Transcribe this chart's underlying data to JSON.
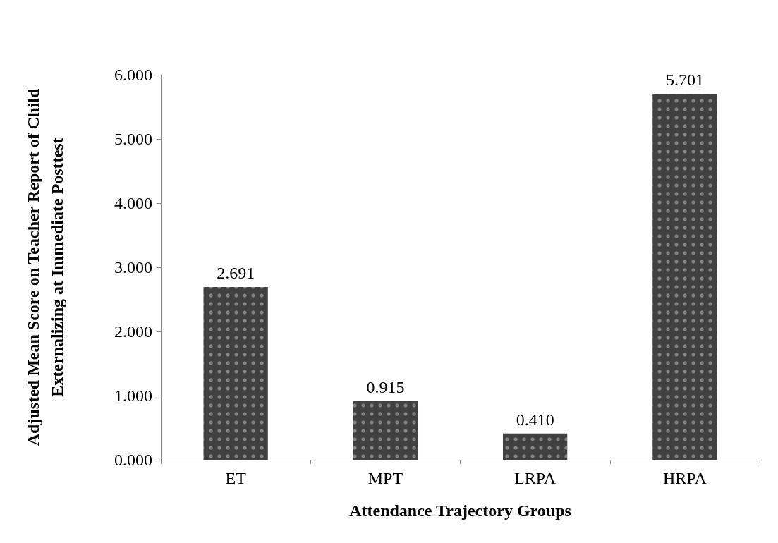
{
  "chart_data": {
    "type": "bar",
    "xlabel": "Attendance Trajectory Groups",
    "ylabel": "Adjusted Mean Score on Teacher Report of Child\nExternalizing at Immediate Posttest",
    "categories": [
      "ET",
      "MPT",
      "LRPA",
      "HRPA"
    ],
    "values": [
      2.691,
      0.915,
      0.41,
      5.701
    ],
    "value_labels": [
      "2.691",
      "0.915",
      "0.410",
      "5.701"
    ],
    "color": "#404040",
    "ylim": [
      0,
      6
    ],
    "yticks": [
      {
        "value": 0,
        "label": "0.000"
      },
      {
        "value": 1,
        "label": "1.000"
      },
      {
        "value": 2,
        "label": "2.000"
      },
      {
        "value": 3,
        "label": "3.000"
      },
      {
        "value": 4,
        "label": "4.000"
      },
      {
        "value": 5,
        "label": "5.000"
      },
      {
        "value": 6,
        "label": "6.000"
      }
    ],
    "grid": false
  }
}
